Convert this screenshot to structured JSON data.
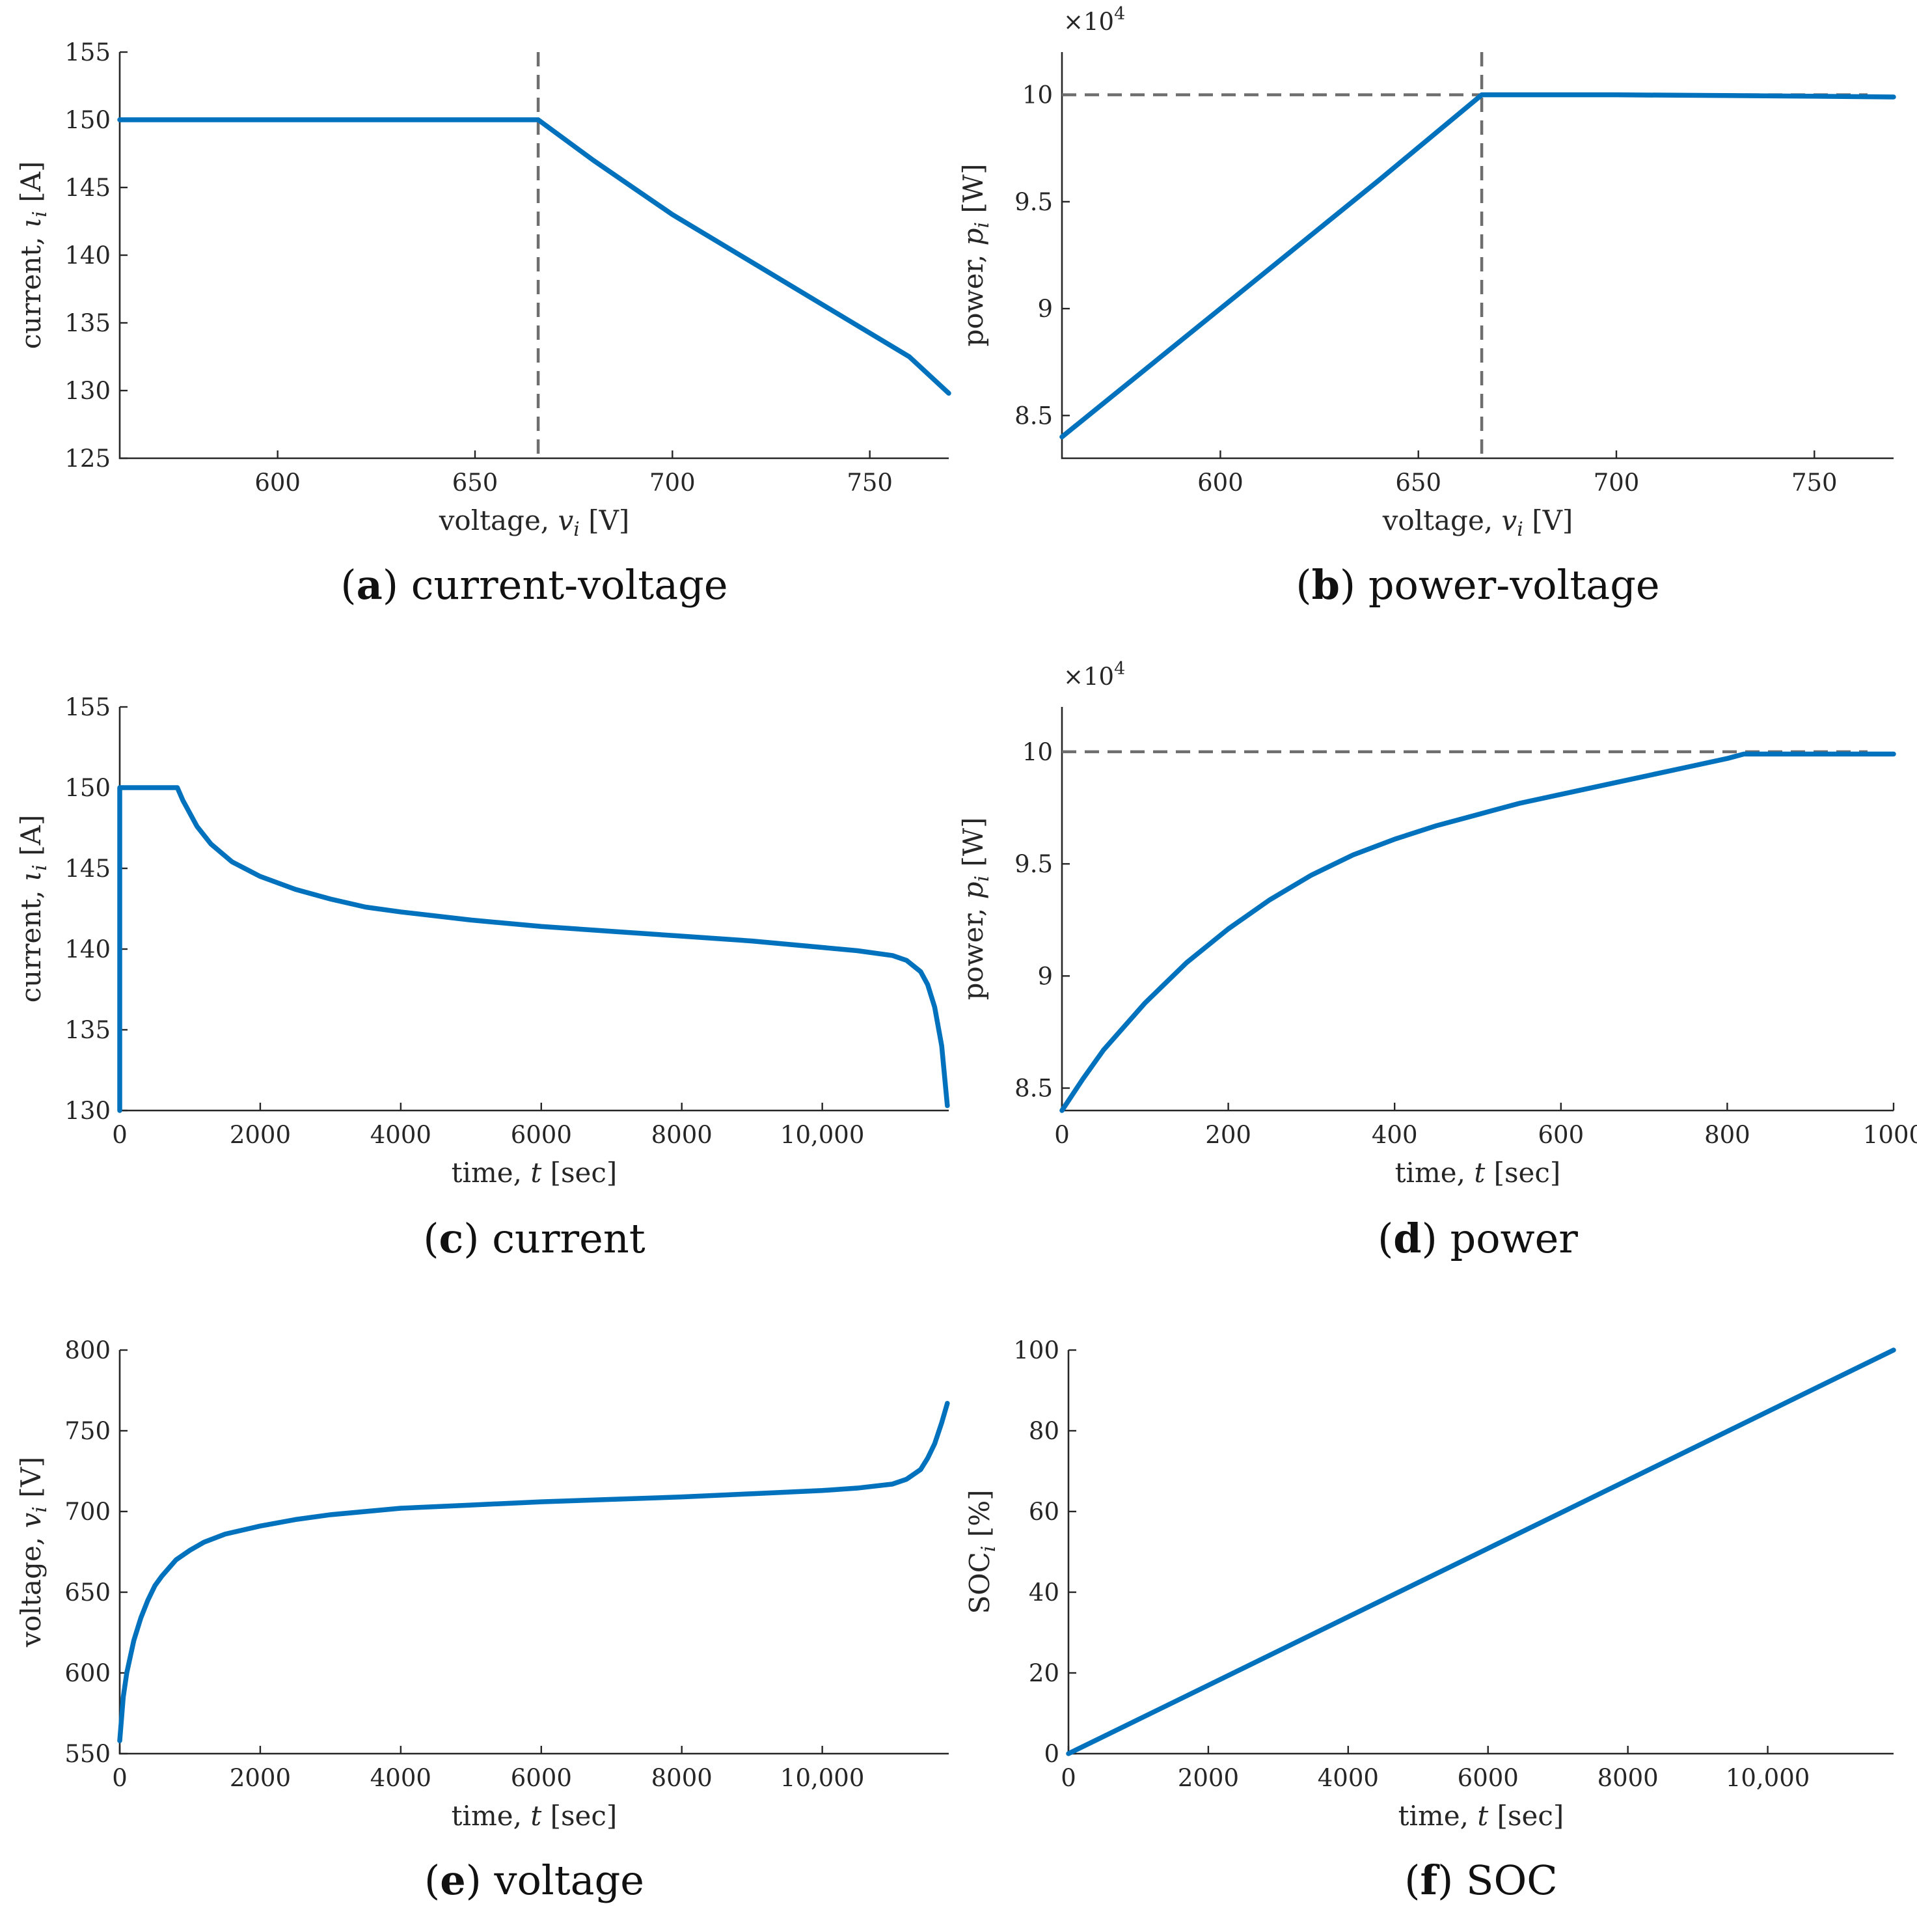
{
  "colors": {
    "series": "#0072BD",
    "reference": "#6e6e6e",
    "axis": "#262626"
  },
  "chart_data": [
    {
      "id": "a",
      "type": "line",
      "caption_letter": "a",
      "caption_text": "current-voltage",
      "xlabel": {
        "text": "voltage, ",
        "var": "v",
        "sub": "i",
        "unit": " [V]"
      },
      "ylabel": {
        "text": "current, ",
        "var": "ι",
        "sub": "i",
        "unit": " [A]"
      },
      "xlim": [
        560,
        770
      ],
      "ylim": [
        125,
        155
      ],
      "xticks": [
        600,
        650,
        700,
        750
      ],
      "xtick_labels": [
        "600",
        "650",
        "700",
        "750"
      ],
      "yticks": [
        125,
        130,
        135,
        140,
        145,
        150,
        155
      ],
      "ytick_labels": [
        "125",
        "130",
        "135",
        "140",
        "145",
        "150",
        "155"
      ],
      "ref_vlines": [
        666
      ],
      "ref_hlines": [],
      "series": [
        {
          "name": "current",
          "x": [
            560,
            600,
            640,
            666,
            680,
            700,
            720,
            740,
            760,
            770
          ],
          "y": [
            150,
            150,
            150,
            150,
            147.0,
            143.0,
            139.5,
            136.0,
            132.5,
            129.8
          ]
        }
      ]
    },
    {
      "id": "b",
      "type": "line",
      "caption_letter": "b",
      "caption_text": "power-voltage",
      "xlabel": {
        "text": "voltage, ",
        "var": "v",
        "sub": "i",
        "unit": " [V]"
      },
      "ylabel": {
        "text": "power, ",
        "var": "p",
        "sub": "i",
        "unit": " [W]"
      },
      "scale_label": "×10",
      "scale_exp": "4",
      "xlim": [
        560,
        770
      ],
      "ylim": [
        8.3,
        10.2
      ],
      "xticks": [
        600,
        650,
        700,
        750
      ],
      "xtick_labels": [
        "600",
        "650",
        "700",
        "750"
      ],
      "yticks": [
        8.5,
        9,
        9.5,
        10
      ],
      "ytick_labels": [
        "8.5",
        "9",
        "9.5",
        "10"
      ],
      "ref_vlines": [
        666
      ],
      "ref_hlines": [
        10
      ],
      "series": [
        {
          "name": "power",
          "x": [
            560,
            600,
            640,
            666,
            700,
            740,
            770
          ],
          "y": [
            8.4,
            9.0,
            9.6,
            10.0,
            10.0,
            9.995,
            9.99
          ]
        }
      ]
    },
    {
      "id": "c",
      "type": "line",
      "caption_letter": "c",
      "caption_text": "current",
      "xlabel": {
        "text": "time, ",
        "var": "t",
        "sub": "",
        "unit": " [sec]"
      },
      "ylabel": {
        "text": "current, ",
        "var": "ι",
        "sub": "i",
        "unit": " [A]"
      },
      "xlim": [
        0,
        11800
      ],
      "ylim": [
        130,
        155
      ],
      "xticks": [
        0,
        2000,
        4000,
        6000,
        8000,
        10000
      ],
      "xtick_labels": [
        "0",
        "2000",
        "4000",
        "6000",
        "8000",
        "10,000"
      ],
      "yticks": [
        130,
        135,
        140,
        145,
        150,
        155
      ],
      "ytick_labels": [
        "130",
        "135",
        "140",
        "145",
        "150",
        "155"
      ],
      "ref_vlines": [],
      "ref_hlines": [],
      "series": [
        {
          "name": "current",
          "x": [
            0,
            0,
            50,
            820,
            900,
            1100,
            1300,
            1600,
            2000,
            2500,
            3000,
            3500,
            4000,
            5000,
            6000,
            7000,
            8000,
            9000,
            10000,
            10500,
            11000,
            11200,
            11400,
            11500,
            11600,
            11700,
            11780
          ],
          "y": [
            130,
            150,
            150,
            150,
            149.2,
            147.6,
            146.5,
            145.4,
            144.5,
            143.7,
            143.1,
            142.6,
            142.3,
            141.8,
            141.4,
            141.1,
            140.8,
            140.5,
            140.1,
            139.9,
            139.6,
            139.3,
            138.6,
            137.8,
            136.4,
            134.0,
            130.3
          ]
        }
      ]
    },
    {
      "id": "d",
      "type": "line",
      "caption_letter": "d",
      "caption_text": "power",
      "xlabel": {
        "text": "time, ",
        "var": "t",
        "sub": "",
        "unit": " [sec]"
      },
      "ylabel": {
        "text": "power, ",
        "var": "p",
        "sub": "i",
        "unit": " [W]"
      },
      "scale_label": "×10",
      "scale_exp": "4",
      "xlim": [
        0,
        1000
      ],
      "ylim": [
        8.4,
        10.2
      ],
      "xticks": [
        0,
        200,
        400,
        600,
        800,
        1000
      ],
      "xtick_labels": [
        "0",
        "200",
        "400",
        "600",
        "800",
        "1000"
      ],
      "yticks": [
        8.5,
        9,
        9.5,
        10
      ],
      "ytick_labels": [
        "8.5",
        "9",
        "9.5",
        "10"
      ],
      "ref_vlines": [],
      "ref_hlines": [
        10
      ],
      "series": [
        {
          "name": "power",
          "x": [
            0,
            25,
            50,
            100,
            150,
            200,
            250,
            300,
            350,
            400,
            450,
            500,
            550,
            600,
            650,
            700,
            750,
            800,
            820,
            900,
            1000
          ],
          "y": [
            8.4,
            8.54,
            8.67,
            8.88,
            9.06,
            9.21,
            9.34,
            9.45,
            9.54,
            9.61,
            9.67,
            9.72,
            9.77,
            9.81,
            9.85,
            9.89,
            9.93,
            9.97,
            9.99,
            9.99,
            9.99
          ]
        }
      ]
    },
    {
      "id": "e",
      "type": "line",
      "caption_letter": "e",
      "caption_text": "voltage",
      "xlabel": {
        "text": "time, ",
        "var": "t",
        "sub": "",
        "unit": " [sec]"
      },
      "ylabel": {
        "text": "voltage, ",
        "var": "v",
        "sub": "i",
        "unit": " [V]"
      },
      "xlim": [
        0,
        11800
      ],
      "ylim": [
        550,
        800
      ],
      "xticks": [
        0,
        2000,
        4000,
        6000,
        8000,
        10000
      ],
      "xtick_labels": [
        "0",
        "2000",
        "4000",
        "6000",
        "8000",
        "10,000"
      ],
      "yticks": [
        550,
        600,
        650,
        700,
        750,
        800
      ],
      "yticks_note": "",
      "ytick_labels": [
        "550",
        "600",
        "650",
        "700",
        "750",
        "800"
      ],
      "ref_vlines": [],
      "ref_hlines": [],
      "series": [
        {
          "name": "voltage",
          "x": [
            0,
            50,
            100,
            200,
            300,
            400,
            500,
            600,
            800,
            1000,
            1200,
            1500,
            2000,
            2500,
            3000,
            4000,
            5000,
            6000,
            7000,
            8000,
            9000,
            10000,
            10500,
            11000,
            11200,
            11400,
            11500,
            11600,
            11700,
            11780
          ],
          "y": [
            558,
            585,
            600,
            620,
            634,
            645,
            654,
            660,
            670,
            676,
            681,
            686,
            691,
            695,
            698,
            702,
            704,
            706,
            707.5,
            709,
            711,
            713,
            714.5,
            717,
            720,
            726,
            733,
            742,
            755,
            767
          ]
        }
      ]
    },
    {
      "id": "f",
      "type": "line",
      "caption_letter": "f",
      "caption_text": "SOC",
      "xlabel": {
        "text": "time, ",
        "var": "t",
        "sub": "",
        "unit": " [sec]"
      },
      "ylabel": {
        "text": "SOC",
        "var": "",
        "sub": "i",
        "unit": " [%]"
      },
      "xlim": [
        0,
        11800
      ],
      "ylim": [
        0,
        100
      ],
      "xticks": [
        0,
        2000,
        4000,
        6000,
        8000,
        10000
      ],
      "xtick_labels": [
        "0",
        "2000",
        "4000",
        "6000",
        "8000",
        "10,000"
      ],
      "yticks": [
        0,
        20,
        40,
        60,
        80,
        100
      ],
      "ytick_labels": [
        "0",
        "20",
        "40",
        "60",
        "80",
        "100"
      ],
      "ref_vlines": [],
      "ref_hlines": [],
      "series": [
        {
          "name": "SOC",
          "x": [
            0,
            11800
          ],
          "y": [
            0,
            100
          ]
        }
      ]
    }
  ]
}
